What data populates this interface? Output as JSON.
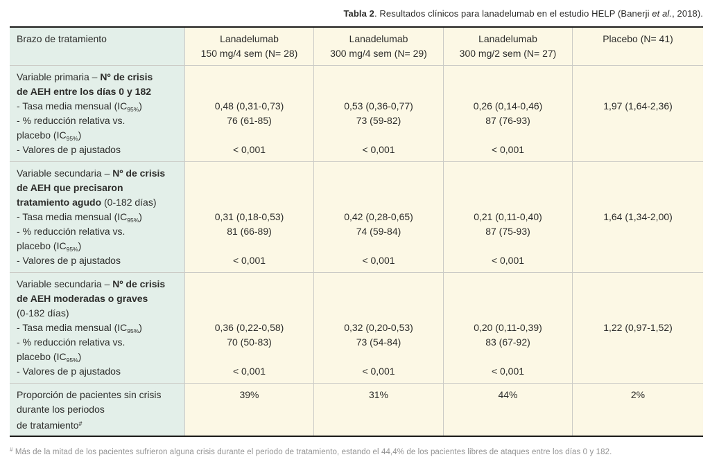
{
  "title": {
    "bold": "Tabla 2",
    "mid": ". Resultados clínicos para lanadelumab en el estudio HELP (Banerji ",
    "italic": "et al.",
    "end": ", 2018)."
  },
  "header": {
    "treatment_arm": "Brazo de tratamiento",
    "arm1": {
      "l1": "Lanadelumab",
      "l2": "150 mg/4 sem (N= 28)"
    },
    "arm2": {
      "l1": "Lanadelumab",
      "l2": "300 mg/4 sem (N= 29)"
    },
    "arm3": {
      "l1": "Lanadelumab",
      "l2": "300 mg/2 sem (N= 27)"
    },
    "placebo": "Placebo (N= 41)"
  },
  "common": {
    "tasa": "- Tasa media mensual (IC",
    "ic_sub": "95%",
    "close_paren": ")",
    "reduccion": "- % reducción relativa vs.",
    "placebo_ic": "placebo (IC",
    "valores": "- Valores de p ajustados"
  },
  "row1": {
    "intro_normal": "Variable primaria – ",
    "intro_bold1": "Nº de crisis",
    "intro_bold2": "de AEH entre los días 0 y 182",
    "c1": {
      "rate": "0,48 (0,31-0,73)",
      "reduction": "76 (61-85)",
      "p": "< 0,001"
    },
    "c2": {
      "rate": "0,53 (0,36-0,77)",
      "reduction": "73 (59-82)",
      "p": "< 0,001"
    },
    "c3": {
      "rate": "0,26 (0,14-0,46)",
      "reduction": "87 (76-93)",
      "p": "< 0,001"
    },
    "c4": {
      "rate": "1,97 (1,64-2,36)"
    }
  },
  "row2": {
    "intro_normal": "Variable secundaria – ",
    "intro_bold1": "Nº de crisis",
    "intro_bold2": "de AEH que precisaron",
    "intro_bold3": "tratamiento agudo",
    "intro_normal2": " (0-182 días)",
    "c1": {
      "rate": "0,31 (0,18-0,53)",
      "reduction": "81 (66-89)",
      "p": "< 0,001"
    },
    "c2": {
      "rate": "0,42 (0,28-0,65)",
      "reduction": "74 (59-84)",
      "p": "< 0,001"
    },
    "c3": {
      "rate": "0,21 (0,11-0,40)",
      "reduction": "87 (75-93)",
      "p": "< 0,001"
    },
    "c4": {
      "rate": "1,64 (1,34-2,00)"
    }
  },
  "row3": {
    "intro_normal": "Variable secundaria – ",
    "intro_bold1": "Nº de crisis",
    "intro_bold2": "de AEH moderadas o graves",
    "intro_normal2": "(0-182 días)",
    "c1": {
      "rate": "0,36 (0,22-0,58)",
      "reduction": "70 (50-83)",
      "p": "< 0,001"
    },
    "c2": {
      "rate": "0,32 (0,20-0,53)",
      "reduction": "73 (54-84)",
      "p": "< 0,001"
    },
    "c3": {
      "rate": "0,20 (0,11-0,39)",
      "reduction": "83 (67-92)",
      "p": "< 0,001"
    },
    "c4": {
      "rate": "1,22 (0,97-1,52)"
    }
  },
  "row4": {
    "label1": "Proporción de pacientes sin crisis",
    "label2": "durante los periodos",
    "label3": "de tratamiento",
    "label3_sup": "#",
    "c1": "39%",
    "c2": "31%",
    "c3": "44%",
    "c4": "2%"
  },
  "footnote": {
    "sup": "#",
    "text": " Más de la mitad de los pacientes sufrieron alguna crisis durante el periodo de tratamiento, estando el 44,4% de los pacientes libres de ataques entre los días 0 y 182."
  },
  "colors": {
    "label_column_bg": "#e3efe9",
    "data_column_bg": "#fcf8e5",
    "table_border": "#1b1b19",
    "grid_line": "#cbcbc6",
    "footnote_text": "#929292"
  }
}
